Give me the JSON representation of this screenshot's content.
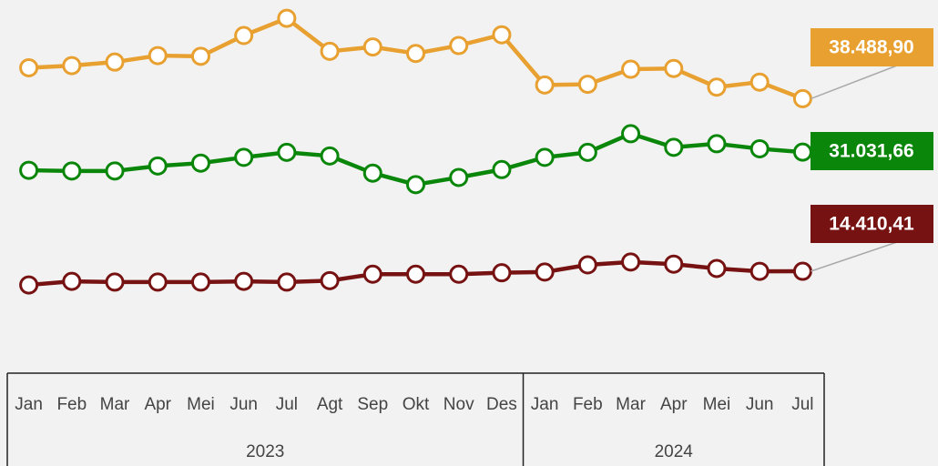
{
  "chart_data": {
    "type": "line",
    "groups": [
      {
        "label": "2023",
        "categories": [
          "Jan",
          "Feb",
          "Mar",
          "Apr",
          "Mei",
          "Jun",
          "Jul",
          "Agt",
          "Sep",
          "Okt",
          "Nov",
          "Des"
        ]
      },
      {
        "label": "2024",
        "categories": [
          "Jan",
          "Feb",
          "Mar",
          "Apr",
          "Mei",
          "Jun",
          "Jul"
        ]
      }
    ],
    "ylim": [
      0,
      52000
    ],
    "series": [
      {
        "color": "#e8a030",
        "values": [
          42800,
          43100,
          43600,
          44500,
          44400,
          47300,
          49700,
          45100,
          45700,
          44800,
          45900,
          47400,
          40400,
          40500,
          42600,
          42700,
          40100,
          40800,
          38488.9
        ],
        "value_labels": [
          null,
          null,
          null,
          null,
          null,
          null,
          null,
          null,
          null,
          null,
          null,
          null,
          null,
          null,
          null,
          null,
          null,
          null,
          "38.488,90"
        ]
      },
      {
        "color": "#0a870a",
        "values": [
          28500,
          28400,
          28400,
          29100,
          29500,
          30300,
          31000,
          30500,
          28100,
          26500,
          27500,
          28600,
          30300,
          31000,
          33600,
          31700,
          32200,
          31500,
          31031.66
        ],
        "value_labels": [
          null,
          null,
          null,
          null,
          null,
          null,
          null,
          null,
          null,
          null,
          null,
          null,
          null,
          null,
          null,
          null,
          null,
          null,
          "31.031,66"
        ]
      },
      {
        "color": "#761212",
        "values": [
          12500,
          13000,
          12900,
          12900,
          12900,
          13000,
          12900,
          13100,
          14000,
          14000,
          14000,
          14200,
          14300,
          15300,
          15700,
          15400,
          14800,
          14400,
          14410.41
        ],
        "value_labels": [
          null,
          null,
          null,
          null,
          null,
          null,
          null,
          null,
          null,
          null,
          null,
          null,
          null,
          null,
          null,
          null,
          null,
          null,
          "14.410,41"
        ]
      }
    ]
  }
}
